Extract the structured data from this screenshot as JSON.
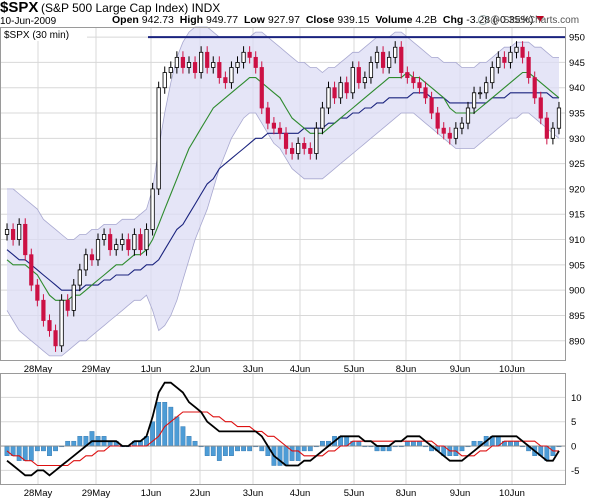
{
  "header": {
    "symbol": "$SPX",
    "name": "(S&P 500 Large Cap Index)",
    "exchange": "INDX",
    "date": "10-Jun-2009",
    "open_label": "Open",
    "open_value": "942.73",
    "high_label": "High",
    "high_value": "949.77",
    "low_label": "Low",
    "low_value": "927.97",
    "close_label": "Close",
    "close_value": "939.15",
    "volume_label": "Volume",
    "volume_value": "4.2B",
    "chg_label": "Chg",
    "chg_value": "-3.28 (-0.35%)",
    "brand": "@ StockCharts.com"
  },
  "chart_data": [
    {
      "type": "candlestick",
      "title": "$SPX (30 min)",
      "ylim": [
        886,
        952
      ],
      "y_ticks": [
        890,
        895,
        900,
        905,
        910,
        915,
        920,
        925,
        930,
        935,
        940,
        945,
        950
      ],
      "x_labels": [
        "28May",
        "29May",
        "1Jun",
        "2Jun",
        "3Jun",
        "4Jun",
        "5Jun",
        "8Jun",
        "9Jun",
        "10Jun"
      ],
      "resistance_level": 950,
      "colors": {
        "up": "#ffffff",
        "down": "#cc1144",
        "ma_fast": "#2e8b2e",
        "ma_slow": "#1a237e",
        "band_fill": "#dcdcf4",
        "resistance": "#1a237e"
      },
      "closes": [
        912,
        910,
        913,
        907,
        901,
        898,
        894,
        892,
        889,
        898,
        896,
        901,
        904,
        907,
        906,
        910,
        911,
        908,
        909,
        910,
        908,
        911,
        908,
        912,
        920,
        940,
        943,
        944,
        946,
        944,
        945,
        943,
        947,
        944,
        945,
        942,
        941,
        944,
        945,
        947,
        946,
        944,
        936,
        933,
        932,
        931,
        928,
        927,
        929,
        928,
        927,
        932,
        936,
        940,
        938,
        941,
        939,
        944,
        941,
        942,
        945,
        947,
        944,
        946,
        948,
        943,
        942,
        941,
        940,
        938,
        935,
        932,
        931,
        930,
        932,
        933,
        936,
        939,
        939,
        941,
        944,
        946,
        945,
        947,
        948,
        946,
        942,
        938,
        934,
        930,
        932,
        936
      ],
      "ma_fast": [
        906,
        905,
        905,
        905,
        904,
        903,
        901,
        899,
        898,
        898,
        898,
        899,
        899,
        900,
        901,
        902,
        903,
        904,
        905,
        905,
        906,
        907,
        907,
        908,
        910,
        913,
        916,
        919,
        922,
        925,
        928,
        930,
        932,
        934,
        936,
        937,
        938,
        939,
        940,
        941,
        942,
        942,
        941,
        940,
        939,
        938,
        936,
        934,
        933,
        932,
        931,
        931,
        931,
        932,
        933,
        934,
        935,
        936,
        937,
        938,
        939,
        940,
        941,
        942,
        942,
        942,
        943,
        942,
        942,
        941,
        940,
        939,
        938,
        936,
        935,
        935,
        935,
        935,
        936,
        937,
        938,
        939,
        940,
        941,
        942,
        943,
        943,
        942,
        941,
        940,
        939,
        938
      ],
      "ma_slow": [
        908,
        907,
        906,
        906,
        905,
        904,
        903,
        902,
        901,
        900,
        900,
        900,
        900,
        901,
        901,
        901,
        902,
        902,
        903,
        903,
        903,
        904,
        904,
        905,
        905,
        906,
        908,
        910,
        912,
        913,
        915,
        917,
        919,
        921,
        922,
        924,
        925,
        926,
        927,
        928,
        929,
        930,
        930,
        931,
        931,
        931,
        931,
        931,
        931,
        932,
        932,
        932,
        932,
        933,
        933,
        934,
        934,
        935,
        935,
        936,
        936,
        937,
        937,
        938,
        938,
        938,
        938,
        939,
        939,
        939,
        938,
        938,
        938,
        937,
        937,
        937,
        937,
        937,
        937,
        937,
        938,
        938,
        938,
        939,
        939,
        939,
        939,
        939,
        939,
        939,
        938,
        938
      ],
      "band_upper": [
        920,
        920,
        919,
        918,
        917,
        916,
        914,
        913,
        912,
        911,
        910,
        910,
        911,
        911,
        912,
        912,
        913,
        913,
        913,
        914,
        914,
        914,
        915,
        916,
        920,
        928,
        935,
        941,
        946,
        949,
        951,
        952,
        952,
        952,
        951,
        950,
        950,
        950,
        950,
        950,
        950,
        951,
        951,
        950,
        949,
        948,
        947,
        946,
        945,
        945,
        944,
        944,
        943,
        944,
        944,
        945,
        946,
        947,
        947,
        948,
        949,
        950,
        950,
        950,
        951,
        951,
        950,
        949,
        948,
        947,
        946,
        946,
        945,
        945,
        945,
        944,
        944,
        944,
        945,
        945,
        946,
        947,
        948,
        948,
        949,
        949,
        949,
        948,
        948,
        947,
        946,
        946
      ],
      "band_lower": [
        896,
        894,
        892,
        891,
        890,
        889,
        888,
        887,
        887,
        887,
        888,
        889,
        890,
        890,
        891,
        892,
        893,
        894,
        895,
        896,
        897,
        898,
        898,
        899,
        896,
        892,
        893,
        895,
        898,
        902,
        906,
        910,
        913,
        916,
        920,
        924,
        927,
        930,
        932,
        934,
        935,
        935,
        933,
        931,
        929,
        928,
        926,
        924,
        923,
        922,
        922,
        922,
        922,
        923,
        924,
        925,
        926,
        927,
        928,
        929,
        930,
        931,
        932,
        933,
        934,
        935,
        935,
        935,
        934,
        933,
        932,
        931,
        930,
        929,
        928,
        928,
        928,
        928,
        929,
        930,
        931,
        932,
        933,
        934,
        934,
        935,
        935,
        934,
        933,
        932,
        931,
        930
      ]
    },
    {
      "type": "line+histogram",
      "ylim": [
        -8,
        15
      ],
      "y_ticks": [
        -5,
        0,
        5,
        10
      ],
      "x_labels": [
        "28May",
        "29May",
        "1Jun",
        "2Jun",
        "3Jun",
        "4Jun",
        "5Jun",
        "8Jun",
        "9Jun",
        "10Jun"
      ],
      "colors": {
        "macd": "#000000",
        "signal": "#dd1111",
        "histogram": "#4d9cd6"
      },
      "macd": [
        -3,
        -4,
        -5,
        -6,
        -6,
        -5,
        -5,
        -6,
        -5,
        -4,
        -3,
        -2,
        -1,
        0,
        1,
        1,
        1,
        1,
        1,
        0,
        0,
        1,
        1,
        2,
        6,
        11,
        13,
        13,
        12,
        11,
        9,
        8,
        7,
        5,
        4,
        3,
        3,
        3,
        3,
        3,
        3,
        3,
        2,
        0,
        -2,
        -3,
        -4,
        -4,
        -4,
        -3,
        -3,
        -2,
        -1,
        0,
        1,
        2,
        2,
        2,
        2,
        1,
        1,
        0,
        0,
        0,
        1,
        1,
        2,
        2,
        2,
        1,
        0,
        -1,
        -2,
        -3,
        -3,
        -3,
        -2,
        -1,
        0,
        1,
        2,
        2,
        2,
        2,
        2,
        1,
        0,
        -1,
        -2,
        -3,
        -3,
        -1
      ],
      "signal": [
        -1,
        -2,
        -2,
        -3,
        -3,
        -4,
        -4,
        -4,
        -4,
        -4,
        -4,
        -3,
        -3,
        -2,
        -2,
        -1,
        -1,
        0,
        0,
        0,
        0,
        0,
        0,
        0,
        1,
        2,
        4,
        5,
        6,
        7,
        7,
        7,
        7,
        7,
        6,
        6,
        5,
        5,
        4,
        4,
        4,
        3,
        3,
        2,
        2,
        1,
        0,
        -1,
        -1,
        -2,
        -2,
        -2,
        -2,
        -1,
        -1,
        0,
        0,
        1,
        1,
        1,
        1,
        1,
        1,
        1,
        1,
        1,
        1,
        1,
        1,
        1,
        1,
        0,
        0,
        -1,
        -1,
        -2,
        -2,
        -2,
        -1,
        -1,
        0,
        0,
        1,
        1,
        1,
        1,
        1,
        1,
        0,
        0,
        -1,
        -1
      ]
    }
  ]
}
